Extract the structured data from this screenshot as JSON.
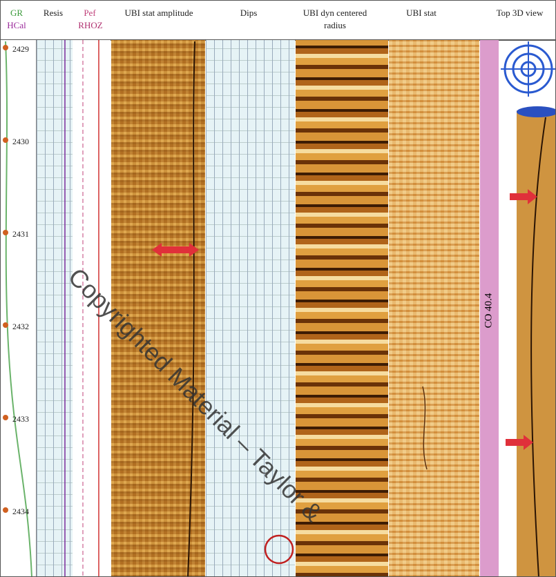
{
  "headers": {
    "gr": "GR",
    "hcal": "HCal",
    "resis": "Resis",
    "pef": "Pef",
    "rhoz": "RHOZ",
    "ubi_stat_amplitude": "UBI stat amplitude",
    "dips": "Dips",
    "ubi_dyn": "UBI dyn centered radius",
    "ubi_stat": "UBI stat",
    "top_3d_view": "Top 3D view"
  },
  "depths": [
    "2429",
    "2430",
    "2431",
    "2432",
    "2433",
    "2434"
  ],
  "zone_label": "CO 40.4",
  "watermark": "Copyrighted Material – Taylor &"
}
